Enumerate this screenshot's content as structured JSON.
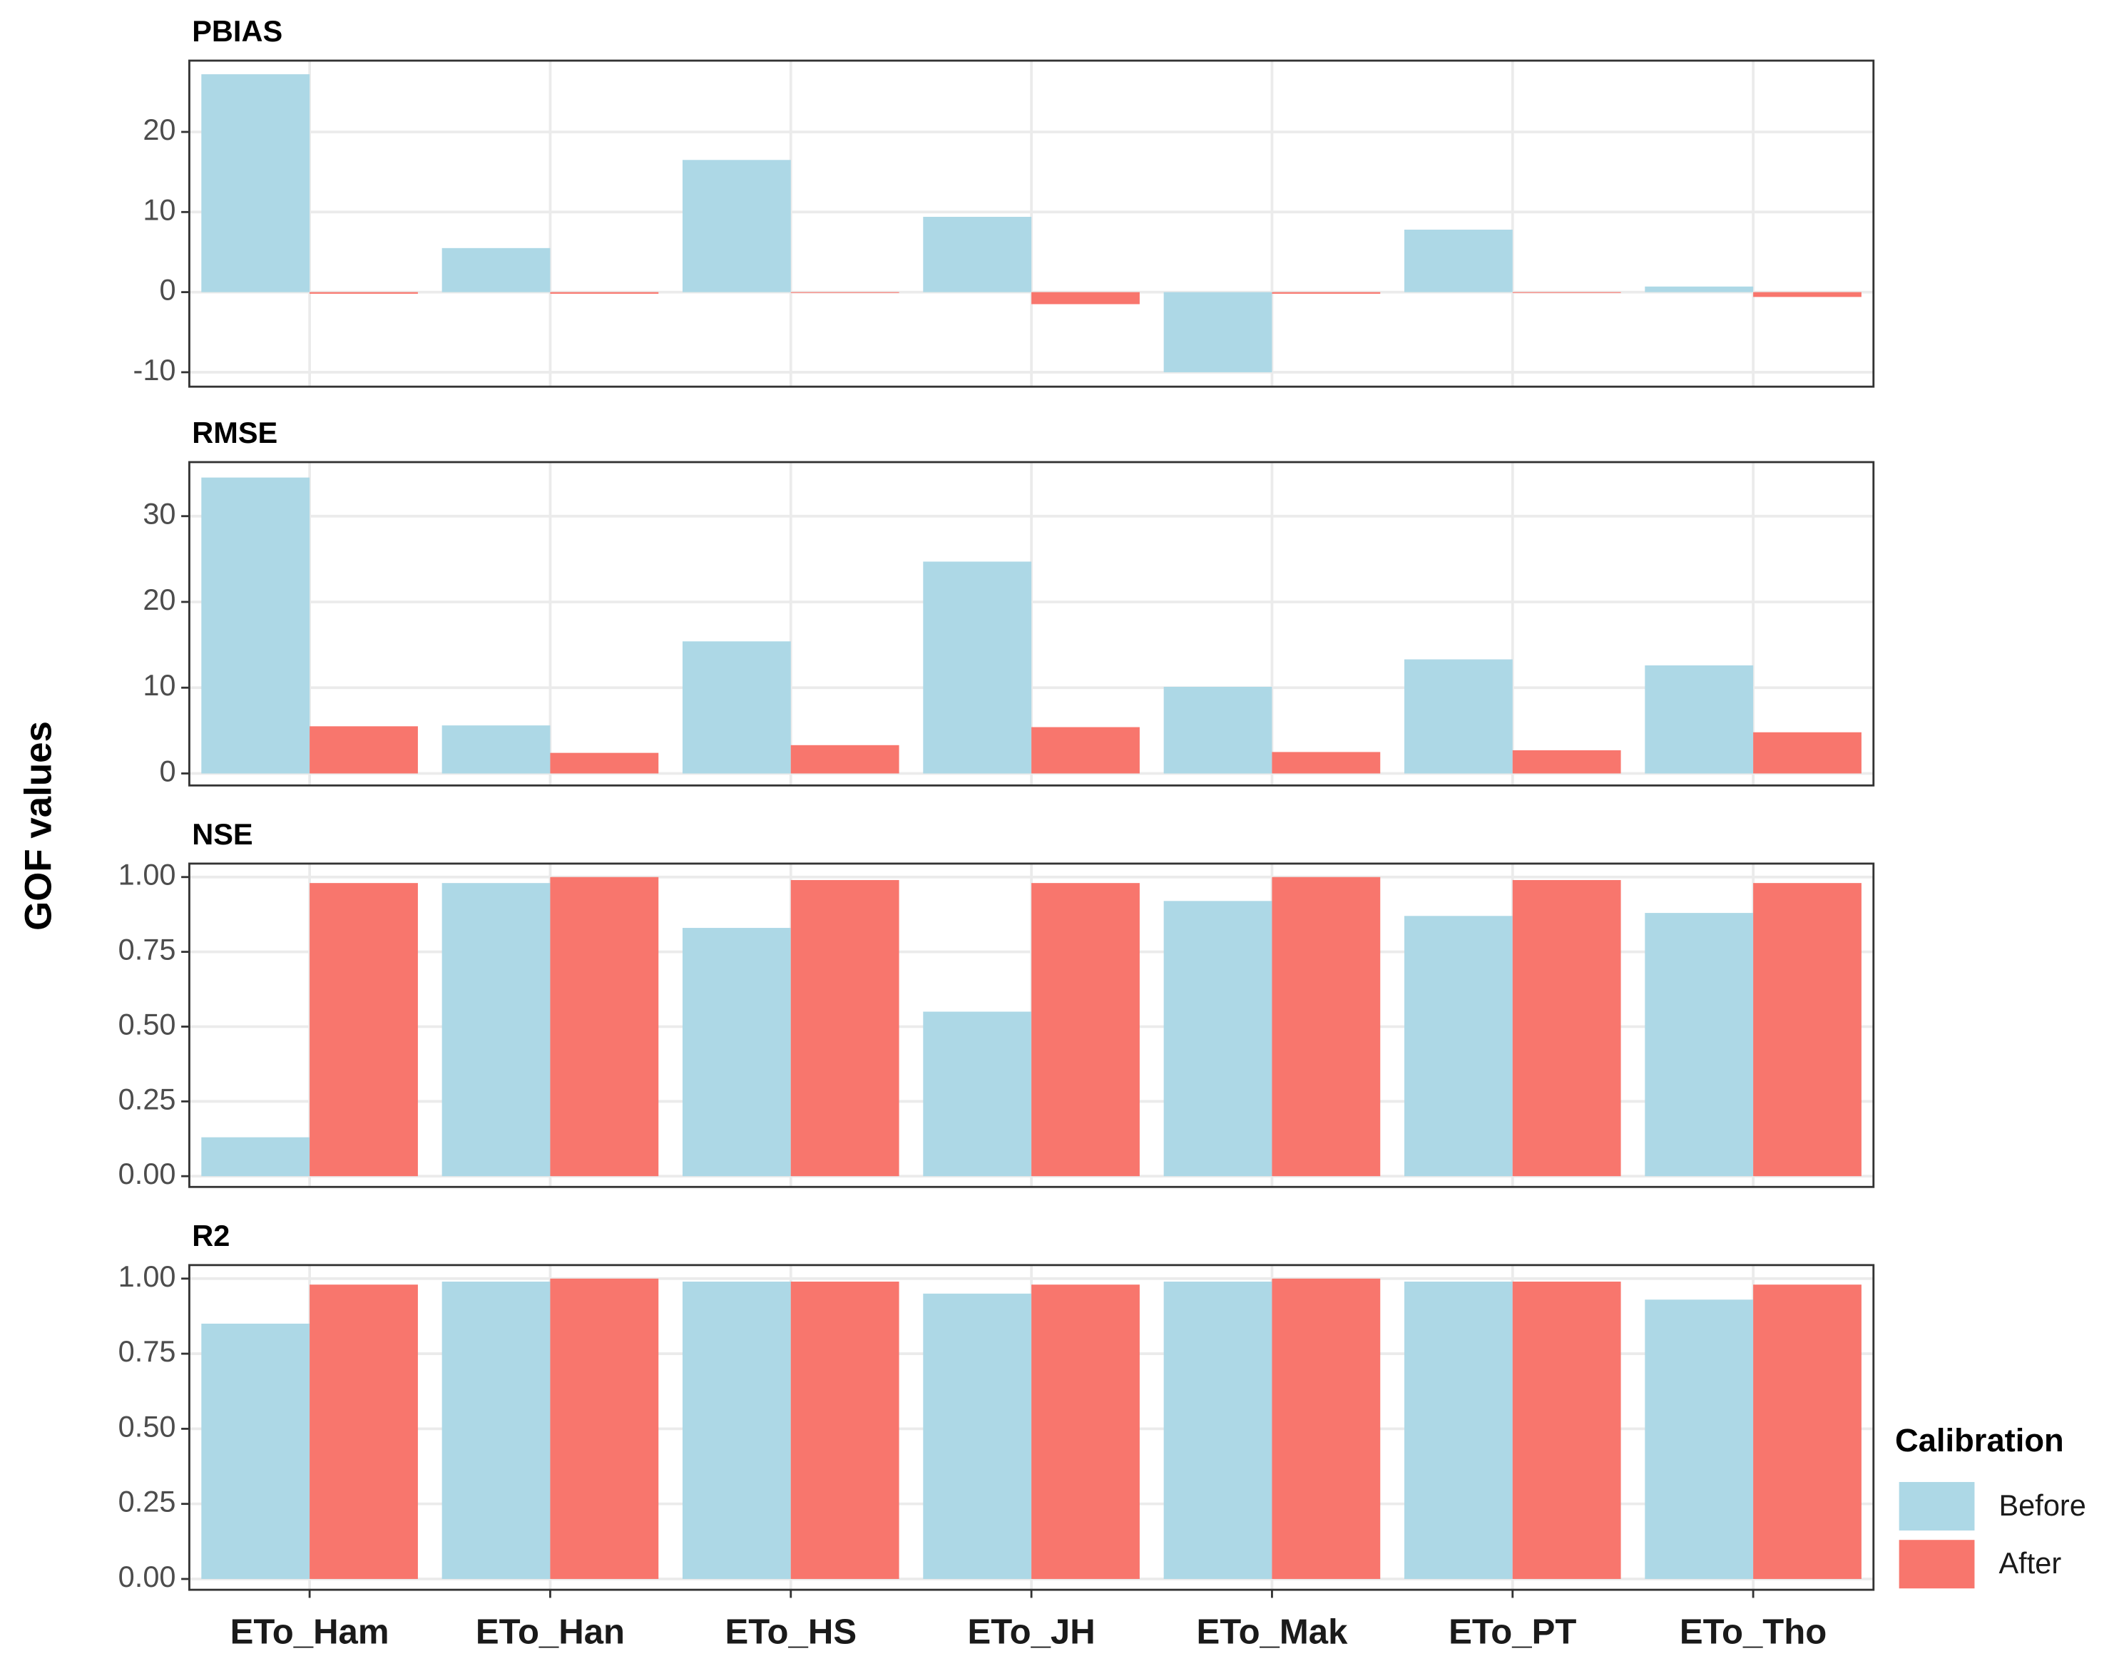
{
  "chart_data": {
    "type": "bar",
    "y_label": "GOF values",
    "legend_title": "Calibration",
    "categories": [
      "ETo_Ham",
      "ETo_Han",
      "ETo_HS",
      "ETo_JH",
      "ETo_Mak",
      "ETo_PT",
      "ETo_Tho"
    ],
    "series": [
      {
        "name": "Before",
        "color": "#add8e6"
      },
      {
        "name": "After",
        "color": "#f8766d"
      }
    ],
    "grid": true,
    "panels": [
      {
        "title": "PBIAS",
        "ylim": [
          -11.8,
          28.9
        ],
        "yticks": [
          -10,
          0,
          10,
          20
        ],
        "values": [
          [
            27.2,
            5.5,
            16.5,
            9.4,
            -10,
            7.8,
            0.7
          ],
          [
            -0.2,
            -0.2,
            -0.1,
            -1.5,
            -0.2,
            -0.1,
            -0.6
          ]
        ]
      },
      {
        "title": "RMSE",
        "ylim": [
          -1.4,
          36.3
        ],
        "yticks": [
          0,
          10,
          20,
          30
        ],
        "values": [
          [
            34.5,
            5.6,
            15.4,
            24.7,
            10.1,
            13.3,
            12.6
          ],
          [
            5.5,
            2.4,
            3.3,
            5.4,
            2.5,
            2.7,
            4.8
          ]
        ]
      },
      {
        "title": "NSE",
        "ylim": [
          -0.036,
          1.045
        ],
        "yticks": [
          {
            "value": 0,
            "label": "0.00"
          },
          {
            "value": 0.25,
            "label": "0.25"
          },
          {
            "value": 0.5,
            "label": "0.50"
          },
          {
            "value": 0.75,
            "label": "0.75"
          },
          {
            "value": 1,
            "label": "1.00"
          }
        ],
        "values": [
          [
            0.13,
            0.98,
            0.83,
            0.55,
            0.92,
            0.87,
            0.88
          ],
          [
            0.98,
            1.0,
            0.99,
            0.98,
            1.0,
            0.99,
            0.98
          ]
        ]
      },
      {
        "title": "R2",
        "ylim": [
          -0.036,
          1.045
        ],
        "yticks": [
          {
            "value": 0,
            "label": "0.00"
          },
          {
            "value": 0.25,
            "label": "0.25"
          },
          {
            "value": 0.5,
            "label": "0.50"
          },
          {
            "value": 0.75,
            "label": "0.75"
          },
          {
            "value": 1,
            "label": "1.00"
          }
        ],
        "values": [
          [
            0.85,
            0.99,
            0.99,
            0.95,
            0.99,
            0.99,
            0.93
          ],
          [
            0.98,
            1.0,
            0.99,
            0.98,
            1.0,
            0.99,
            0.98
          ]
        ]
      }
    ]
  }
}
